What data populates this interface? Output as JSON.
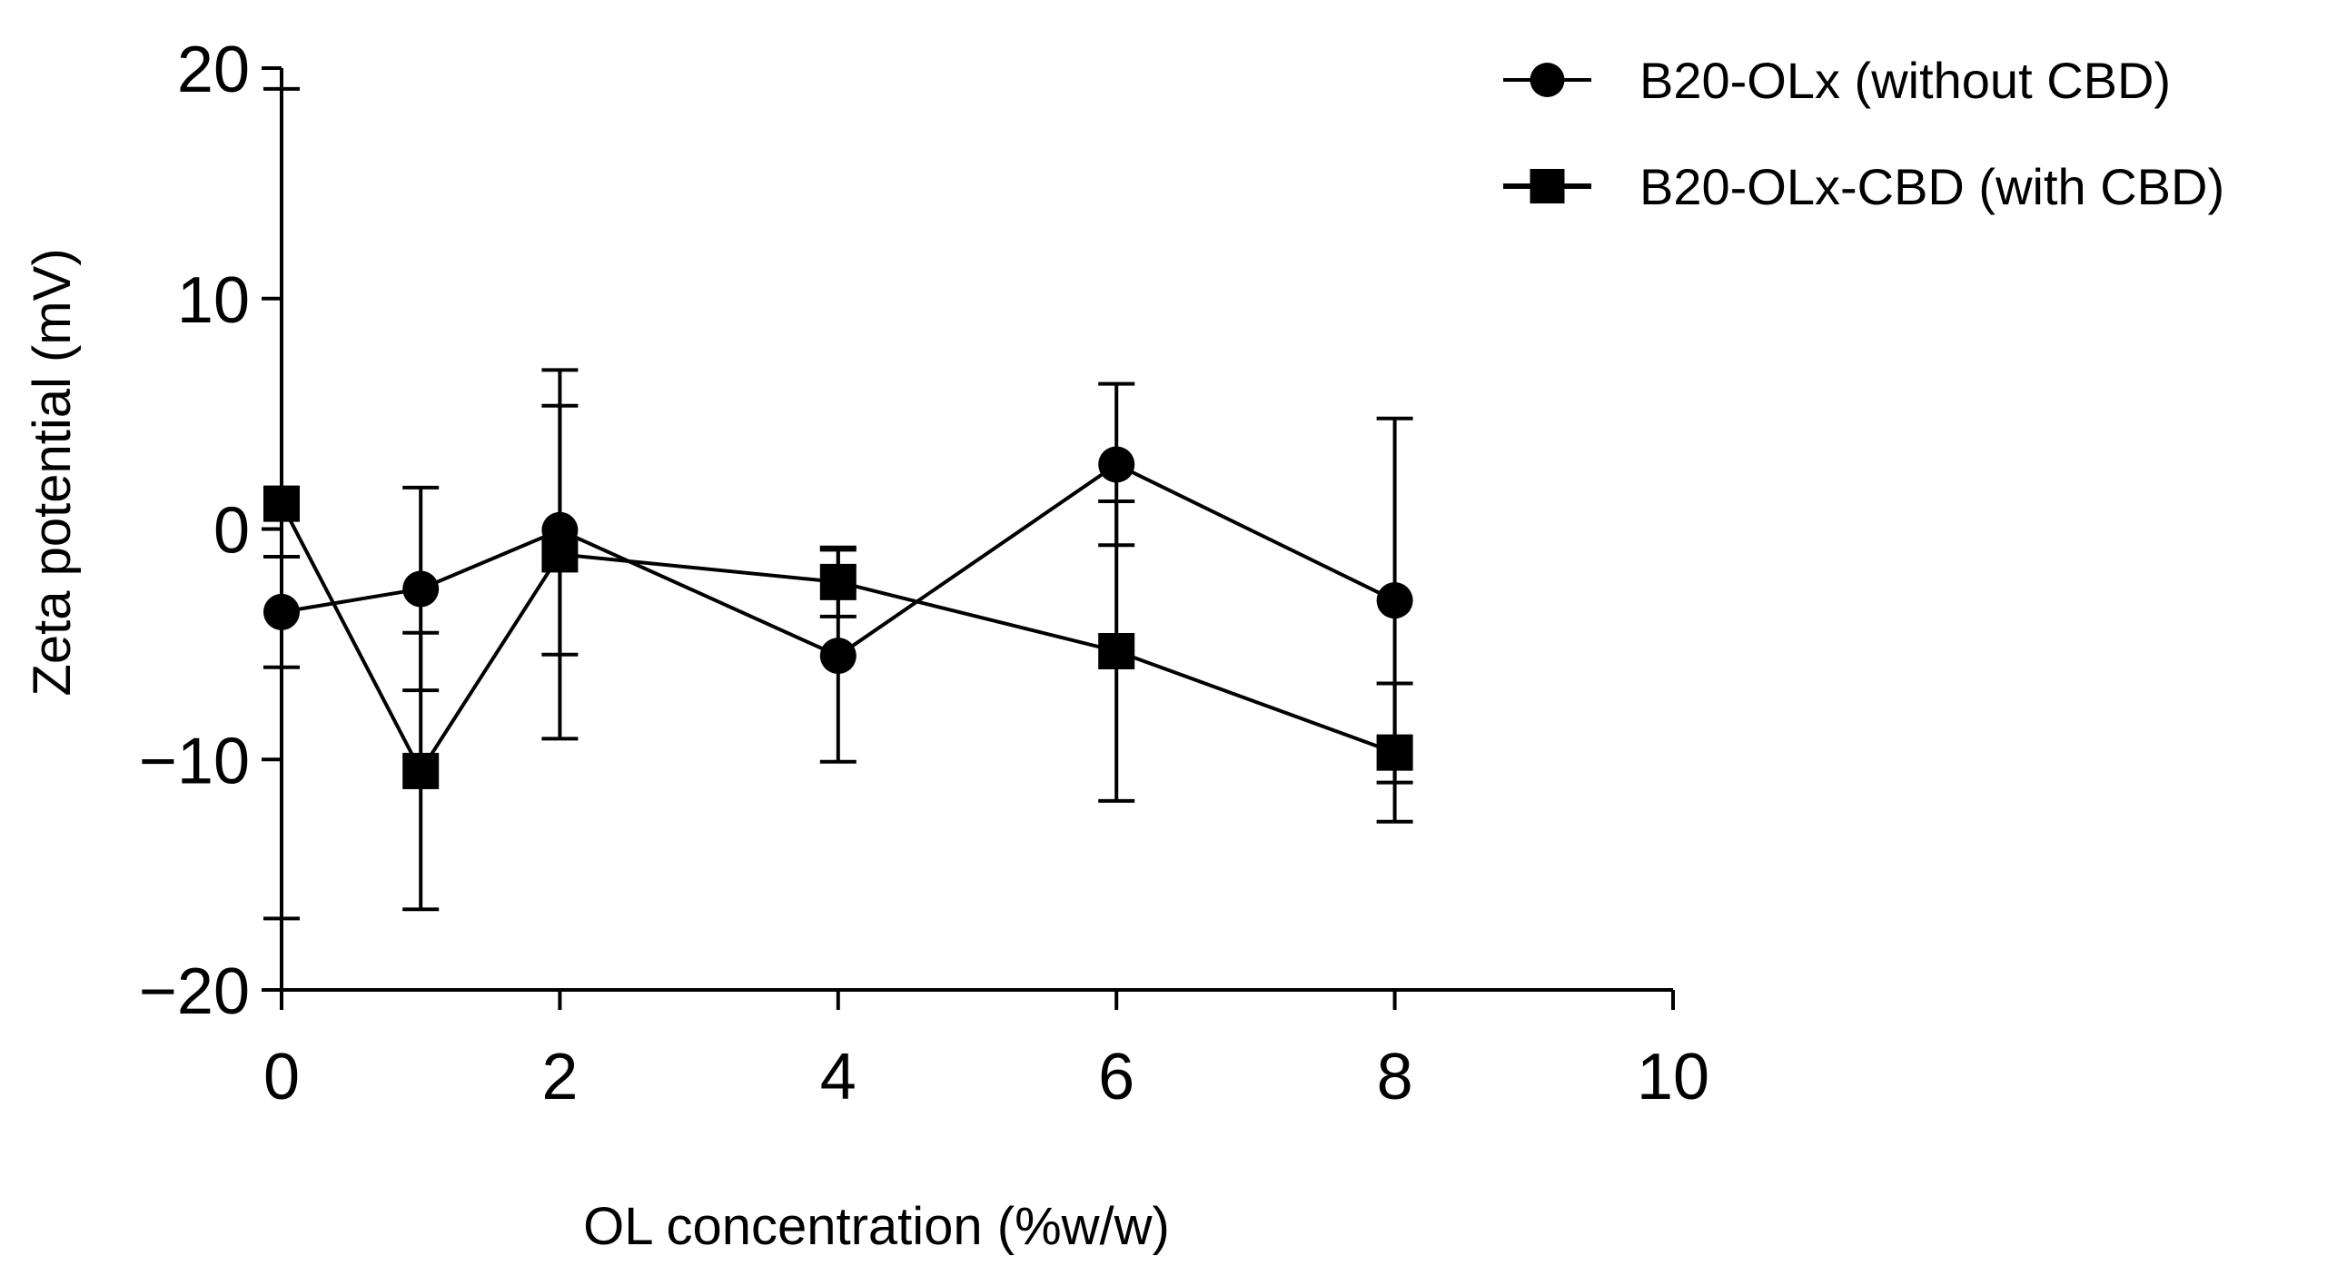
{
  "chart_data": {
    "type": "line",
    "title": "",
    "xlabel": "OL concentration (%w/w)",
    "ylabel": "Zeta potential (mV)",
    "xlim": [
      0,
      10
    ],
    "ylim": [
      -20,
      20
    ],
    "xticks": [
      0,
      2,
      4,
      6,
      8,
      10
    ],
    "yticks": [
      20,
      10,
      0,
      -10,
      -20
    ],
    "xtick_labels": [
      "0",
      "2",
      "4",
      "6",
      "8",
      "10"
    ],
    "ytick_labels": [
      "20",
      "10",
      "0",
      "−10",
      "−20"
    ],
    "grid": false,
    "legend_position": "top-right",
    "series": [
      {
        "name": "B20-OLx (without CBD)",
        "marker": "circle",
        "color": "#000000",
        "x": [
          0,
          1,
          2,
          4,
          6,
          8
        ],
        "y": [
          -3.6,
          -2.6,
          -0.05,
          -5.5,
          2.8,
          -3.1
        ],
        "err": [
          2.4,
          4.4,
          5.4,
          4.6,
          3.5,
          7.9
        ]
      },
      {
        "name": "B20-OLx-CBD (with CBD)",
        "marker": "square",
        "color": "#000000",
        "x": [
          0,
          1,
          2,
          4,
          6,
          8
        ],
        "y": [
          1.1,
          -10.5,
          -1.1,
          -2.3,
          -5.3,
          -9.7
        ],
        "err": [
          18.0,
          6.0,
          8.0,
          1.5,
          6.5,
          3.0
        ]
      }
    ]
  }
}
